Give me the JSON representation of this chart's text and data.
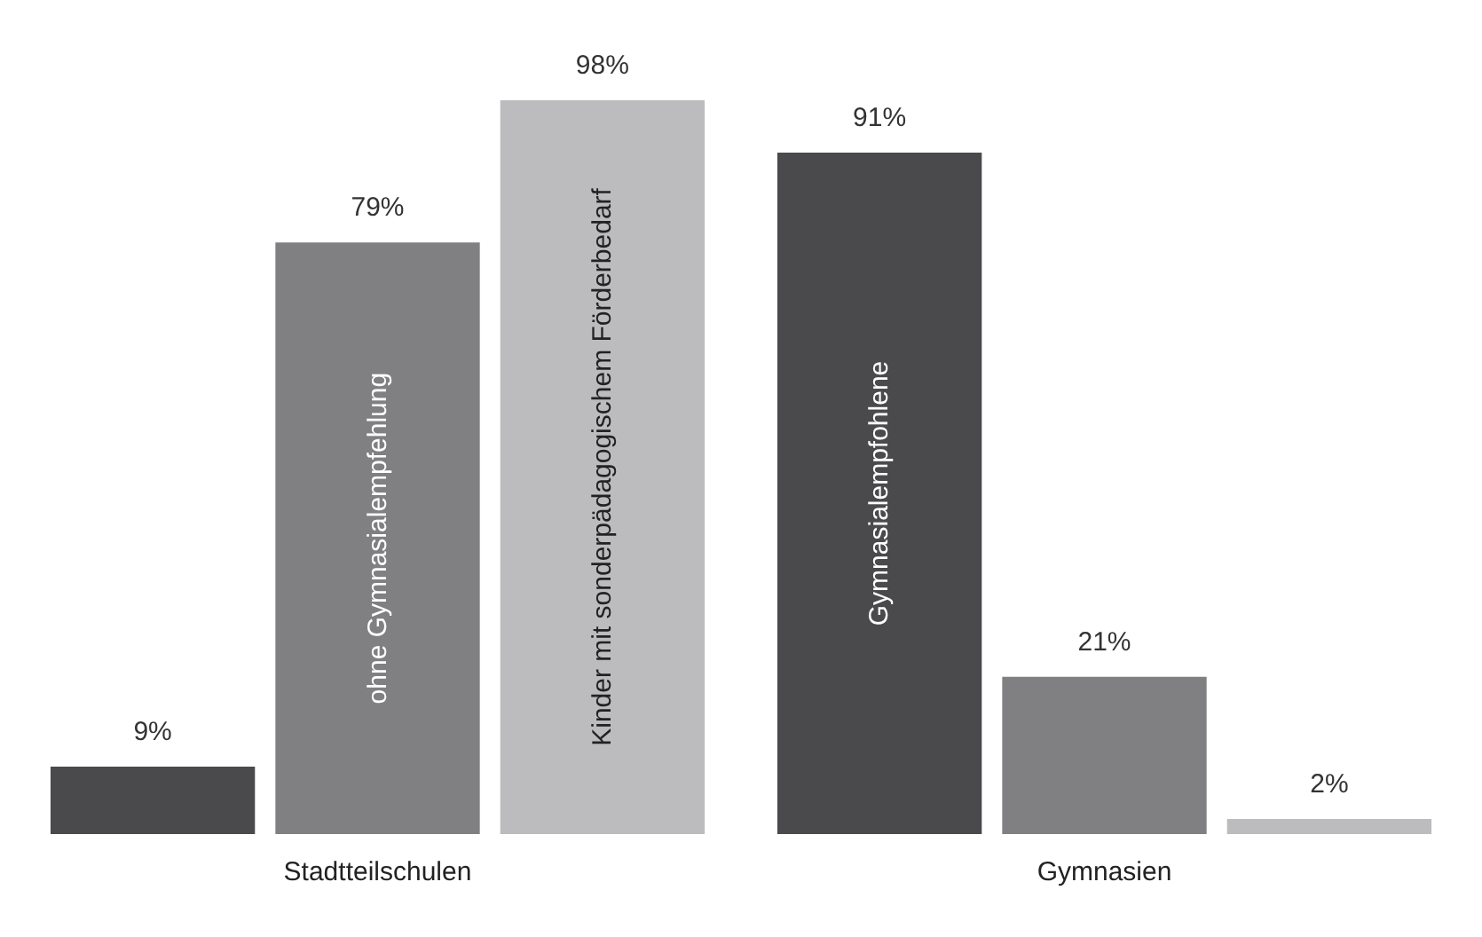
{
  "chart_data": {
    "type": "bar",
    "categories": [
      "Stadtteilschulen",
      "Gymnasien"
    ],
    "series": [
      {
        "name": "Gymnasialempfohlene",
        "color": "#4a4a4c",
        "values": [
          9,
          91
        ],
        "value_labels": [
          "9%",
          "91%"
        ]
      },
      {
        "name": "ohne Gymnasialempfehlung",
        "color": "#808083",
        "values": [
          79,
          21
        ],
        "value_labels": [
          "79%",
          "21%"
        ]
      },
      {
        "name": "Kinder mit sonderpädagogischem Förderbedarf",
        "color": "#bcbcbe",
        "values": [
          98,
          2
        ],
        "value_labels": [
          "98%",
          "2%"
        ]
      }
    ],
    "legend": false
  }
}
